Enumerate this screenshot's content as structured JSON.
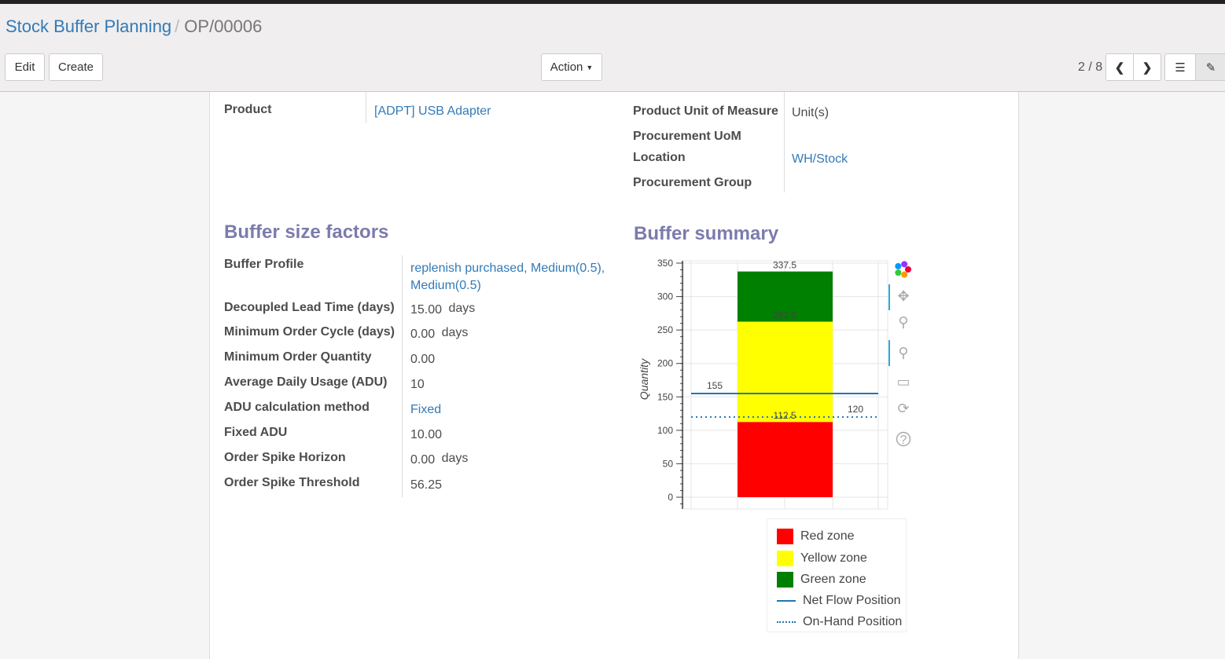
{
  "breadcrumb": {
    "parent": "Stock Buffer Planning",
    "current": "OP/00006"
  },
  "toolbar": {
    "edit": "Edit",
    "create": "Create",
    "action": "Action",
    "pager": "2 / 8"
  },
  "header_fields": {
    "product_label": "Product",
    "product_value": "[ADPT] USB Adapter",
    "uom_label": "Product Unit of Measure",
    "uom_value": "Unit(s)",
    "proc_uom_label": "Procurement UoM",
    "location_label": "Location",
    "location_value": "WH/Stock",
    "group_label": "Procurement Group"
  },
  "factors": {
    "title": "Buffer size factors",
    "rows": [
      {
        "label": "Buffer Profile",
        "value": "replenish purchased, Medium(0.5),",
        "value2": "Medium(0.5)"
      },
      {
        "label": "Decoupled Lead Time (days)",
        "value": "15.00",
        "unit": "days"
      },
      {
        "label": "Minimum Order Cycle (days)",
        "value": "0.00",
        "unit": "days"
      },
      {
        "label": "Minimum Order Quantity",
        "value": "0.00"
      },
      {
        "label": "Average Daily Usage (ADU)",
        "value": "10"
      },
      {
        "label": "ADU calculation method",
        "value": "Fixed"
      },
      {
        "label": "Fixed ADU",
        "value": "10.00"
      },
      {
        "label": "Order Spike Horizon",
        "value": "0.00",
        "unit": "days"
      },
      {
        "label": "Order Spike Threshold",
        "value": "56.25"
      }
    ]
  },
  "summary": {
    "title": "Buffer summary"
  },
  "chart_data": {
    "type": "bar",
    "stacked": true,
    "ylabel": "Quantity",
    "ylim": [
      -18,
      354
    ],
    "yticks": [
      0,
      50,
      100,
      150,
      200,
      250,
      300,
      350
    ],
    "grid": true,
    "zones": [
      {
        "name": "Red zone",
        "bottom": 0,
        "top": 112.5,
        "color": "#ff0000",
        "label": "112.5"
      },
      {
        "name": "Yellow zone",
        "bottom": 112.5,
        "top": 262.5,
        "color": "#ffff00",
        "label": "262.5"
      },
      {
        "name": "Green zone",
        "bottom": 262.5,
        "top": 337.5,
        "color": "#008000",
        "label": "337.5"
      }
    ],
    "lines": [
      {
        "name": "Net Flow Position",
        "value": 155,
        "label": "155",
        "style": "solid",
        "color": "#1f77b4"
      },
      {
        "name": "On-Hand Position",
        "value": 120,
        "label": "120",
        "style": "dotted",
        "color": "#1f77b4"
      }
    ],
    "legend_position": "bottom-right"
  },
  "chart_tools": [
    "bokeh-logo-icon",
    "pan-icon",
    "box-zoom-icon",
    "wheel-zoom-icon",
    "save-icon",
    "reset-icon",
    "help-icon"
  ]
}
